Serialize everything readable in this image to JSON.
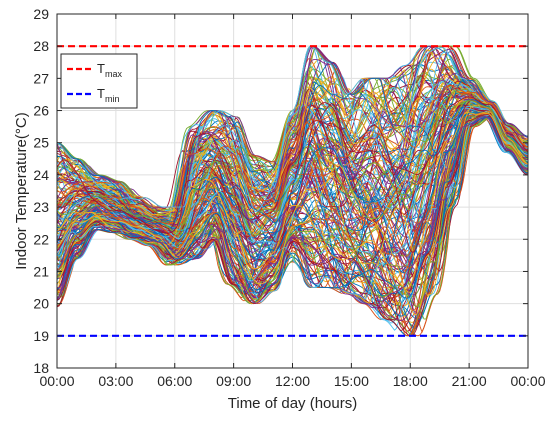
{
  "chart_data": {
    "type": "line",
    "xlabel": "Time of day (hours)",
    "ylabel": "Indoor Temperature(°C)",
    "xlim": [
      0,
      24
    ],
    "ylim": [
      18,
      29
    ],
    "x_ticks": [
      0,
      3,
      6,
      9,
      12,
      15,
      18,
      21,
      24
    ],
    "x_tick_labels": [
      "00:00",
      "03:00",
      "06:00",
      "09:00",
      "12:00",
      "15:00",
      "18:00",
      "21:00",
      "00:00"
    ],
    "y_ticks": [
      18,
      19,
      20,
      21,
      22,
      23,
      24,
      25,
      26,
      27,
      28,
      29
    ],
    "y_tick_labels": [
      "18",
      "19",
      "20",
      "21",
      "22",
      "23",
      "24",
      "25",
      "26",
      "27",
      "28",
      "29"
    ],
    "grid": true,
    "legend_position": "top-left",
    "reference_lines": [
      {
        "label_main": "T",
        "label_sub": "max",
        "value": 28,
        "color": "#ff0000",
        "style": "dashed"
      },
      {
        "label_main": "T",
        "label_sub": "min",
        "value": 19,
        "color": "#0000ff",
        "style": "dashed"
      }
    ],
    "series_count": 200,
    "series_colors": [
      "#0072BD",
      "#D95319",
      "#EDB120",
      "#7E2F8E",
      "#77AC30",
      "#4DBEEE",
      "#A2142F"
    ],
    "envelope": {
      "x": [
        0,
        1,
        2,
        3,
        4,
        5,
        6,
        7,
        8,
        9,
        10,
        11,
        12,
        13,
        14,
        15,
        16,
        17,
        18,
        19,
        20,
        21,
        22,
        23,
        24
      ],
      "upper": [
        25.0,
        24.5,
        24.0,
        23.8,
        23.3,
        23.0,
        23.0,
        25.5,
        26.0,
        25.8,
        24.6,
        24.4,
        26.0,
        28.0,
        27.5,
        26.5,
        27.0,
        27.0,
        27.4,
        28.0,
        28.0,
        27.0,
        26.3,
        25.6,
        25.2
      ],
      "lower": [
        19.9,
        21.4,
        22.3,
        22.2,
        22.0,
        21.8,
        21.2,
        21.4,
        22.0,
        20.6,
        20.0,
        20.4,
        21.3,
        20.5,
        20.5,
        20.3,
        20.0,
        19.5,
        19.0,
        20.3,
        23.0,
        25.5,
        25.8,
        24.7,
        24.0
      ]
    }
  }
}
